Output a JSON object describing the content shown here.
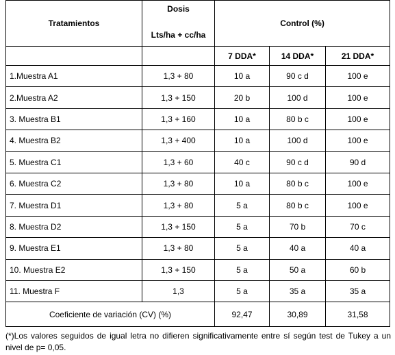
{
  "table": {
    "header": {
      "treatment": "Tratamientos",
      "dose_title": "Dosis",
      "dose_unit": "Lts/ha + cc/ha",
      "control": "Control (%)",
      "subheaders": [
        "7 DDA*",
        "14 DDA*",
        "21 DDA*"
      ]
    },
    "rows": [
      [
        "1.Muestra A1",
        "1,3 + 80",
        "10 a",
        "90 c d",
        "100 e"
      ],
      [
        "2.Muestra A2",
        "1,3 + 150",
        "20 b",
        "100 d",
        "100 e"
      ],
      [
        "3. Muestra B1",
        "1,3 + 160",
        "10 a",
        "80 b c",
        "100 e"
      ],
      [
        "4. Muestra B2",
        "1,3 + 400",
        "10 a",
        "100 d",
        "100 e"
      ],
      [
        "5. Muestra C1",
        "1,3 + 60",
        "40 c",
        "90 c d",
        "90 d"
      ],
      [
        "6. Muestra C2",
        "1,3 + 80",
        "10 a",
        "80 b c",
        "100 e"
      ],
      [
        "7. Muestra D1",
        "1,3 + 80",
        "5 a",
        "80 b c",
        "100 e"
      ],
      [
        "8. Muestra D2",
        "1,3 + 150",
        "5 a",
        "70 b",
        "70 c"
      ],
      [
        "9. Muestra E1",
        "1,3 + 80",
        "5 a",
        "40 a",
        "40 a"
      ],
      [
        "10. Muestra E2",
        "1,3 + 150",
        "5 a",
        "50 a",
        "60 b"
      ],
      [
        "11. Muestra F",
        "1,3",
        "5 a",
        "35 a",
        "35 a"
      ]
    ],
    "cv": {
      "label": "Coeficiente de variación (CV) (%)",
      "values": [
        "92,47",
        "30,89",
        "31,58"
      ]
    }
  },
  "footnote": "(*)Los valores seguidos de igual letra no difieren significativamente entre sí según test de Tukey a un nivel de p= 0,05."
}
